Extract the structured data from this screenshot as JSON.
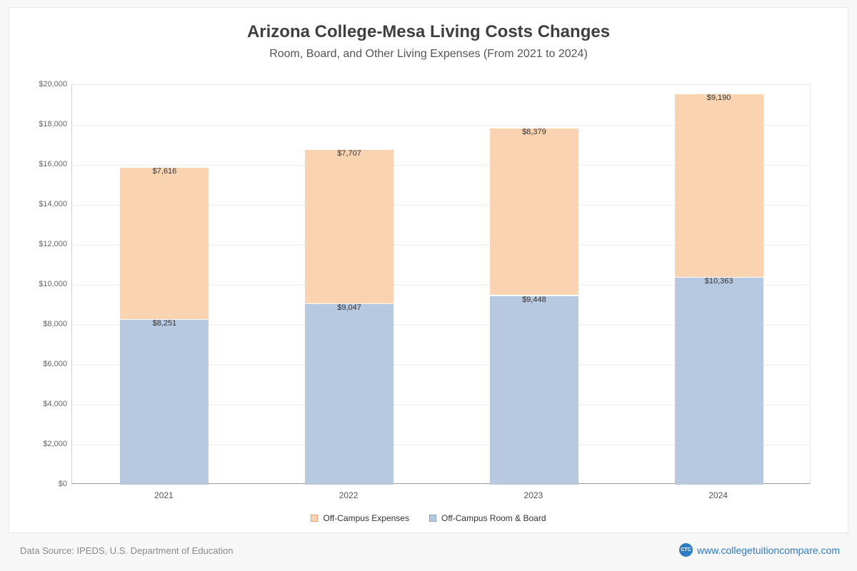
{
  "page": {
    "title": "Arizona College-Mesa Living Costs Changes",
    "subtitle": "Room, Board, and Other Living Expenses (From 2021 to 2024)"
  },
  "footer": {
    "source": "Data Source: IPEDS, U.S. Department of Education",
    "logo_text": "CTC",
    "link": "www.collegetuitioncompare.com"
  },
  "colors": {
    "expenses_fill": "#FAD3B0",
    "expenses_border": "#E2A378",
    "room_fill": "#B7C8E1",
    "room_border": "#85A3C9",
    "link": "#2E7CC3",
    "grid": "#ECECEC"
  },
  "legend": {
    "items": [
      {
        "label": "Off-Campus Expenses",
        "series": "expenses"
      },
      {
        "label": "Off-Campus Room & Board",
        "series": "room"
      }
    ]
  },
  "chart_data": {
    "type": "bar",
    "stacked": true,
    "title": "Arizona College-Mesa Living Costs Changes",
    "subtitle": "Room, Board, and Other Living Expenses (From 2021 to 2024)",
    "categories": [
      "2021",
      "2022",
      "2023",
      "2024"
    ],
    "series": [
      {
        "name": "Off-Campus Room & Board",
        "color_key": "room",
        "values": [
          8251,
          9047,
          9448,
          10363
        ],
        "labels": [
          "$8,251",
          "$9,047",
          "$9,448",
          "$10,363"
        ]
      },
      {
        "name": "Off-Campus Expenses",
        "color_key": "expenses",
        "values": [
          7616,
          7707,
          8379,
          9190
        ],
        "labels": [
          "$7,616",
          "$7,707",
          "$8,379",
          "$9,190"
        ]
      }
    ],
    "stack_totals": [
      15867,
      16754,
      17827,
      19553
    ],
    "ylim": [
      0,
      20000
    ],
    "ytick_step": 2000,
    "ytick_labels": [
      "$0",
      "$2,000",
      "$4,000",
      "$6,000",
      "$8,000",
      "$10,000",
      "$12,000",
      "$14,000",
      "$16,000",
      "$18,000",
      "$20,000"
    ],
    "grid": true,
    "legend_position": "bottom"
  }
}
